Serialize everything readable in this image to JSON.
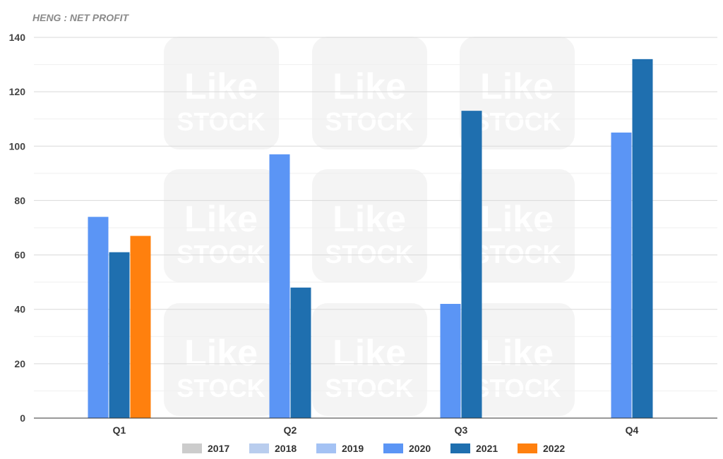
{
  "chart_data": {
    "type": "bar",
    "title": "HENG : NET PROFIT",
    "categories": [
      "Q1",
      "Q2",
      "Q3",
      "Q4"
    ],
    "ylim": [
      0,
      140
    ],
    "yticks": [
      0,
      20,
      40,
      60,
      80,
      100,
      120,
      140
    ],
    "grid": true,
    "legend_position": "bottom",
    "series": [
      {
        "name": "2017",
        "color": "#cccccc",
        "values": [
          null,
          null,
          null,
          null
        ]
      },
      {
        "name": "2018",
        "color": "#b9cdee",
        "values": [
          null,
          null,
          null,
          null
        ]
      },
      {
        "name": "2019",
        "color": "#a4c2f4",
        "values": [
          null,
          null,
          null,
          null
        ]
      },
      {
        "name": "2020",
        "color": "#5b95f5",
        "values": [
          74,
          97,
          42,
          105
        ]
      },
      {
        "name": "2021",
        "color": "#1f6faf",
        "values": [
          61,
          48,
          113,
          132
        ]
      },
      {
        "name": "2022",
        "color": "#ff800e",
        "values": [
          67,
          null,
          null,
          null
        ]
      }
    ]
  },
  "watermark": {
    "line1": "Like",
    "line2": "STOCK"
  }
}
